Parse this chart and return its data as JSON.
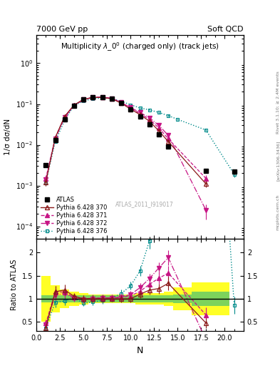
{
  "title_left": "7000 GeV pp",
  "title_right": "Soft QCD",
  "plot_title": "Multiplicity $\\lambda\\_0^0$ (charged only) (track jets)",
  "ylabel_main": "1/σ dσ/dN",
  "ylabel_ratio": "Ratio to ATLAS",
  "xlabel": "N",
  "watermark": "ATLAS_2011_I919017",
  "rivet_label": "Rivet 3.1.10; ≥ 2.4M events",
  "arxiv_label": "[arXiv:1306.3436]",
  "mcplots_label": "mcplots.cern.ch",
  "atlas_x": [
    1,
    2,
    3,
    4,
    5,
    6,
    7,
    8,
    9,
    10,
    11,
    12,
    13,
    14,
    18,
    21
  ],
  "atlas_y": [
    0.0032,
    0.013,
    0.042,
    0.09,
    0.13,
    0.145,
    0.145,
    0.135,
    0.105,
    0.075,
    0.05,
    0.032,
    0.018,
    0.009,
    0.0023,
    0.0022
  ],
  "atlas_ye": [
    0.0003,
    0.001,
    0.003,
    0.005,
    0.007,
    0.008,
    0.008,
    0.007,
    0.006,
    0.004,
    0.003,
    0.002,
    0.001,
    0.0006,
    0.0003,
    0.0003
  ],
  "p370_x": [
    1,
    2,
    3,
    4,
    5,
    6,
    7,
    8,
    9,
    10,
    11,
    12,
    13,
    14,
    18
  ],
  "p370_y": [
    0.0012,
    0.015,
    0.05,
    0.095,
    0.13,
    0.145,
    0.145,
    0.135,
    0.105,
    0.075,
    0.055,
    0.038,
    0.022,
    0.012,
    0.0011
  ],
  "p370_ye": [
    0.0002,
    0.001,
    0.003,
    0.004,
    0.006,
    0.007,
    0.007,
    0.006,
    0.005,
    0.004,
    0.003,
    0.002,
    0.0015,
    0.001,
    0.0002
  ],
  "p371_x": [
    1,
    2,
    3,
    4,
    5,
    6,
    7,
    8,
    9,
    10,
    11,
    12,
    13,
    14,
    18
  ],
  "p371_y": [
    0.0015,
    0.015,
    0.048,
    0.093,
    0.13,
    0.147,
    0.148,
    0.138,
    0.108,
    0.08,
    0.058,
    0.042,
    0.026,
    0.014,
    0.0015
  ],
  "p371_ye": [
    0.0002,
    0.001,
    0.003,
    0.004,
    0.006,
    0.007,
    0.007,
    0.006,
    0.005,
    0.004,
    0.003,
    0.002,
    0.0015,
    0.001,
    0.0003
  ],
  "p372_x": [
    1,
    2,
    3,
    4,
    5,
    6,
    7,
    8,
    9,
    10,
    11,
    12,
    13,
    14,
    18
  ],
  "p372_y": [
    0.0014,
    0.014,
    0.047,
    0.091,
    0.128,
    0.145,
    0.147,
    0.138,
    0.109,
    0.082,
    0.062,
    0.046,
    0.03,
    0.017,
    0.00025
  ],
  "p372_ye": [
    0.0002,
    0.001,
    0.003,
    0.004,
    0.006,
    0.007,
    0.007,
    0.006,
    0.005,
    0.004,
    0.003,
    0.002,
    0.0015,
    0.001,
    0.0001
  ],
  "p376_x": [
    1,
    2,
    3,
    4,
    5,
    6,
    7,
    8,
    9,
    10,
    11,
    12,
    13,
    14,
    15,
    18,
    21
  ],
  "p376_y": [
    0.0012,
    0.012,
    0.04,
    0.092,
    0.118,
    0.135,
    0.14,
    0.137,
    0.117,
    0.096,
    0.08,
    0.072,
    0.062,
    0.052,
    0.042,
    0.023,
    0.0019
  ],
  "p376_ye": [
    0.0002,
    0.001,
    0.003,
    0.004,
    0.005,
    0.006,
    0.006,
    0.006,
    0.005,
    0.004,
    0.003,
    0.003,
    0.003,
    0.003,
    0.002,
    0.001,
    0.0003
  ],
  "color_atlas": "#000000",
  "color_p370": "#8B1A1A",
  "color_p371": "#C71585",
  "color_p372": "#C71585",
  "color_p376": "#008B8B",
  "green_band": 0.1,
  "yellow_band": 0.3,
  "ratio_band_edges": [
    0.5,
    1.5,
    2.5,
    3.5,
    4.5,
    5.5,
    6.5,
    7.5,
    8.5,
    9.5,
    10.5,
    11.5,
    12.5,
    13.5,
    14.5,
    16.5,
    20.5
  ],
  "ratio_green": [
    0.08,
    0.08,
    0.08,
    0.08,
    0.08,
    0.08,
    0.08,
    0.08,
    0.08,
    0.08,
    0.08,
    0.08,
    0.08,
    0.08,
    0.1,
    0.15,
    0.2
  ],
  "ratio_yellow": [
    0.5,
    0.3,
    0.2,
    0.15,
    0.12,
    0.1,
    0.1,
    0.1,
    0.1,
    0.1,
    0.12,
    0.12,
    0.12,
    0.15,
    0.25,
    0.35,
    0.4
  ],
  "ylim_main": [
    5e-05,
    5.0
  ],
  "ylim_ratio": [
    0.3,
    2.3
  ],
  "xlim": [
    0,
    22
  ],
  "yticks_ratio": [
    0.5,
    1.0,
    1.5,
    2.0
  ]
}
